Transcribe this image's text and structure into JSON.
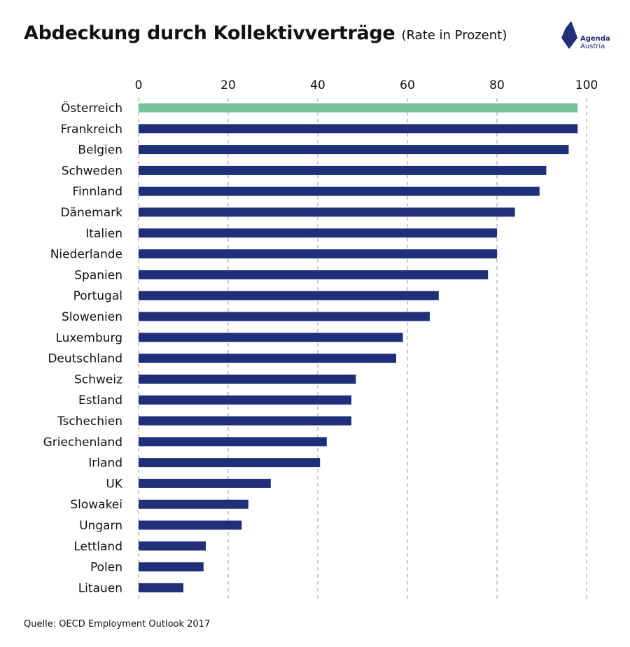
{
  "header": {
    "title": "Abdeckung durch Kollektivverträge",
    "subtitle": "(Rate in Prozent)"
  },
  "logo": {
    "line1": "Agenda",
    "line2": "Austria",
    "color": "#1f2f7a"
  },
  "footer": {
    "source": "Quelle: OECD Employment Outlook 2017"
  },
  "chart_data": {
    "type": "bar",
    "orientation": "horizontal",
    "title": "Abdeckung durch Kollektivverträge",
    "subtitle": "(Rate in Prozent)",
    "xlim": [
      0,
      100
    ],
    "ticks": [
      0,
      20,
      40,
      60,
      80,
      100
    ],
    "grid": "vertical dashed",
    "highlight_color": "#76c39a",
    "bar_color": "#1f2f7a",
    "categories": [
      "Österreich",
      "Frankreich",
      "Belgien",
      "Schweden",
      "Finnland",
      "Dänemark",
      "Italien",
      "Niederlande",
      "Spanien",
      "Portugal",
      "Slowenien",
      "Luxemburg",
      "Deutschland",
      "Schweiz",
      "Estland",
      "Tschechien",
      "Griechenland",
      "Irland",
      "UK",
      "Slowakei",
      "Ungarn",
      "Lettland",
      "Polen",
      "Litauen"
    ],
    "values": [
      98,
      98,
      96,
      91,
      89.5,
      84,
      80,
      80,
      78,
      67,
      65,
      59,
      57.5,
      48.5,
      47.5,
      47.5,
      42,
      40.5,
      29.5,
      24.5,
      23,
      15,
      14.5,
      10
    ],
    "highlight": [
      "Österreich"
    ]
  }
}
